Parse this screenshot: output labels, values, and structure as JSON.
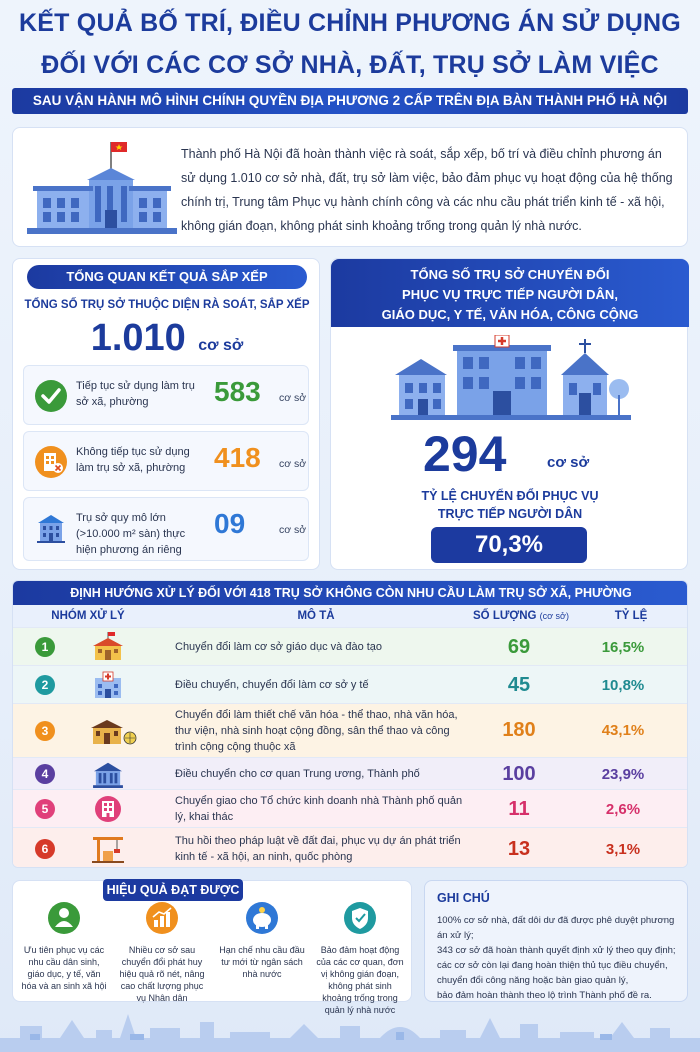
{
  "header": {
    "title_line1": "KẾT QUẢ BỐ TRÍ, ĐIỀU CHỈNH PHƯƠNG ÁN SỬ DỤNG",
    "title_line2": "ĐỐI VỚI CÁC CƠ SỞ NHÀ, ĐẤT, TRỤ SỞ LÀM VIỆC",
    "subtitle": "SAU VẬN HÀNH MÔ HÌNH CHÍNH QUYỀN ĐỊA PHƯƠNG 2 CẤP TRÊN ĐỊA BÀN THÀNH PHỐ HÀ NỘI"
  },
  "intro": {
    "text": "Thành phố Hà Nội đã hoàn thành việc rà soát, sắp xếp, bố trí và điều chỉnh phương án sử dụng 1.010 cơ sở nhà, đất, trụ sở làm việc, bảo đảm phục vụ hoạt động của hệ thống chính trị, Trung tâm Phục vụ hành chính công và các nhu cầu phát triển kinh tế - xã hội, không gián đoạn, không phát sinh khoảng trống trong quản lý nhà nước."
  },
  "overview": {
    "heading": "TỔNG QUAN KẾT QUẢ SẮP XẾP",
    "sub": "TỔNG SỐ TRỤ SỞ THUỘC DIỆN RÀ SOÁT, SẮP XẾP",
    "total": "1.010",
    "unit": "cơ sở",
    "items": [
      {
        "label": "Tiếp tục sử dụng làm trụ sở xã, phường",
        "value": "583",
        "unit": "cơ sở",
        "color": "#3a9a3a",
        "icon": "check-icon"
      },
      {
        "label": "Không tiếp tục sử dụng làm trụ sở xã, phường",
        "value": "418",
        "unit": "cơ sở",
        "color": "#f0901e",
        "icon": "building-x-icon"
      },
      {
        "label": "Trụ sở quy mô lớn (>10.000 m² sàn) thực hiện phương án riêng",
        "value": "09",
        "unit": "cơ sở",
        "color": "#2f78d6",
        "icon": "office-building-icon"
      }
    ]
  },
  "conversion": {
    "heading_line1": "TỔNG SỐ TRỤ SỞ CHUYỂN ĐỔI",
    "heading_line2": "PHỤC VỤ TRỰC TIẾP NGƯỜI DÂN,",
    "heading_line3": "GIÁO DỤC, Y TẾ, VĂN HÓA, CÔNG CỘNG",
    "total": "294",
    "unit": "cơ sở",
    "rate_label_line1": "TỶ LỆ CHUYỂN ĐỔI PHỤC VỤ",
    "rate_label_line2": "TRỰC TIẾP NGƯỜI DÂN",
    "rate": "70,3%"
  },
  "table": {
    "title": "ĐỊNH HƯỚNG XỬ LÝ ĐỐI VỚI 418 TRỤ SỞ KHÔNG CÒN NHU CẦU LÀM TRỤ SỞ XÃ, PHƯỜNG",
    "col_group": "NHÓM XỬ LÝ",
    "col_desc": "MÔ TẢ",
    "col_qty": "SỐ LƯỢNG",
    "col_qty_unit": "(cơ sở)",
    "col_rate": "TỶ LỆ",
    "rows": [
      {
        "n": "1",
        "desc": "Chuyển đổi làm cơ sở giáo dục và đào tạo",
        "qty": "69",
        "rate": "16,5%",
        "color": "#3a9a3a",
        "icon": "school-icon"
      },
      {
        "n": "2",
        "desc": "Điều chuyển, chuyển đổi làm cơ sở y tế",
        "qty": "45",
        "rate": "10,8%",
        "color": "#1f9aa0",
        "icon": "hospital-icon"
      },
      {
        "n": "3",
        "desc": "Chuyển đổi làm thiết chế văn hóa - thể thao, nhà văn hóa, thư viện, nhà sinh hoạt cộng đồng, sân thể thao và công trình cộng cộng thuộc xã",
        "qty": "180",
        "rate": "43,1%",
        "color": "#f0901e",
        "icon": "culture-house-icon"
      },
      {
        "n": "4",
        "desc": "Điều chuyển cho cơ quan Trung ương, Thành phố",
        "qty": "100",
        "rate": "23,9%",
        "color": "#5a3fa0",
        "icon": "government-building-icon"
      },
      {
        "n": "5",
        "desc": "Chuyển giao cho Tổ chức kinh doanh nhà Thành phố quản lý, khai thác",
        "qty": "11",
        "rate": "2,6%",
        "color": "#e0407a",
        "icon": "apartment-icon"
      },
      {
        "n": "6",
        "desc": "Thu hồi theo pháp luật về đất đai, phục vụ dự án phát triển kinh tế - xã hội, an ninh, quốc phòng",
        "qty": "13",
        "rate": "3,1%",
        "color": "#d63a2a",
        "icon": "crane-icon"
      }
    ]
  },
  "effects": {
    "heading": "HIỆU QUẢ ĐẠT ĐƯỢC",
    "items": [
      {
        "text": "Ưu tiên phục vụ các nhu cầu dân sinh, giáo dục, y tế, văn hóa và an sinh xã hội",
        "color": "#3a9a3a",
        "icon": "people-icon"
      },
      {
        "text": "Nhiều cơ sở sau chuyển đổi phát huy hiệu quả rõ nét, nâng cao chất lượng phục vụ Nhân dân",
        "color": "#f0901e",
        "icon": "growth-chart-icon"
      },
      {
        "text": "Hạn chế nhu cầu đầu tư mới từ ngân sách nhà nước",
        "color": "#2f78d6",
        "icon": "piggy-bank-icon"
      },
      {
        "text": "Bảo đảm hoạt động của các cơ quan, đơn vị không gián đoạn, không phát sinh khoảng trống trong quản lý nhà nước",
        "color": "#1f9aa0",
        "icon": "shield-check-icon"
      }
    ]
  },
  "notes": {
    "heading": "GHI CHÚ",
    "lines": [
      "100% cơ sở nhà, đất dôi dư đã được phê duyệt phương án xử lý;",
      "343 cơ sở đã hoàn thành quyết định xử lý theo quy định;",
      "các cơ sở còn lại đang hoàn thiện thủ tục điều chuyển,",
      "chuyển đổi công năng hoặc bàn giao quản lý,",
      "bảo đảm hoàn thành theo lộ trình Thành phố đề ra."
    ]
  }
}
